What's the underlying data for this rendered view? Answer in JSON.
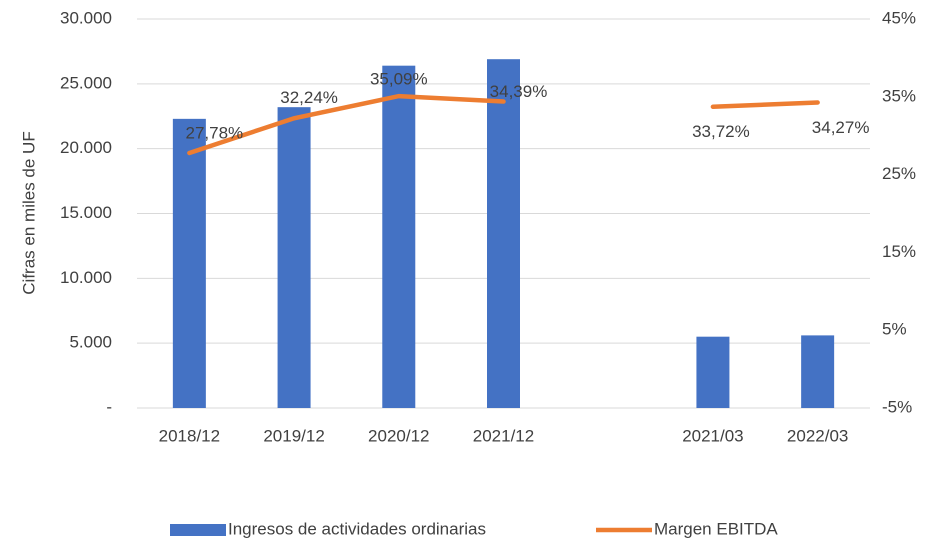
{
  "chart_data": {
    "type": "bar-line",
    "y_label": "Cifras  en miles de UF",
    "categories": [
      "2018/12",
      "2019/12",
      "2020/12",
      "2021/12",
      null,
      "2021/03",
      "2022/03"
    ],
    "series": [
      {
        "name": "Ingresos de actividades ordinarias",
        "type": "bar",
        "color": "#4472c4",
        "values": [
          22300,
          23200,
          26400,
          26900,
          null,
          5500,
          5600
        ]
      },
      {
        "name": "Margen EBITDA",
        "type": "line",
        "axis": "y2",
        "color": "#ed7d31",
        "values": [
          27.78,
          32.24,
          35.09,
          34.39,
          null,
          33.72,
          34.27
        ],
        "value_labels": [
          "27,78%",
          "32,24%",
          "35,09%",
          "34,39%",
          null,
          "33,72%",
          "34,27%"
        ]
      }
    ],
    "ylim": [
      0,
      30000
    ],
    "yticks": [
      {
        "value": 0,
        "label": "-"
      },
      {
        "value": 5000,
        "label": "5.000"
      },
      {
        "value": 10000,
        "label": "10.000"
      },
      {
        "value": 15000,
        "label": "15.000"
      },
      {
        "value": 20000,
        "label": "20.000"
      },
      {
        "value": 25000,
        "label": "25.000"
      },
      {
        "value": 30000,
        "label": "30.000"
      }
    ],
    "y2lim": [
      -5,
      45
    ],
    "y2ticks": [
      {
        "value": -5,
        "label": "-5%"
      },
      {
        "value": 5,
        "label": "5%"
      },
      {
        "value": 15,
        "label": "15%"
      },
      {
        "value": 25,
        "label": "25%"
      },
      {
        "value": 35,
        "label": "35%"
      },
      {
        "value": 45,
        "label": "45%"
      }
    ],
    "grid": true,
    "legend": "bottom"
  }
}
